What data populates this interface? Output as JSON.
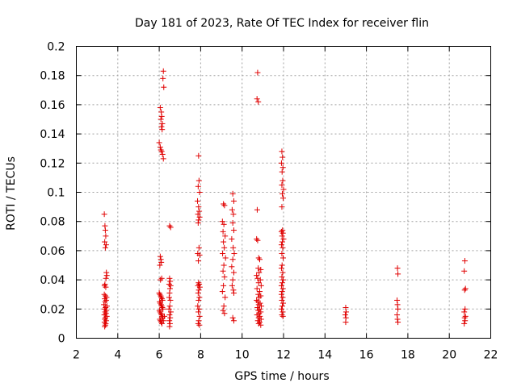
{
  "chart_data": {
    "type": "scatter",
    "title": "Day 181 of 2023, Rate Of TEC Index for receiver flin",
    "xlabel": "GPS time / hours",
    "ylabel": "ROTI / TECUs",
    "xlim": [
      2,
      22
    ],
    "ylim": [
      0,
      0.2
    ],
    "x_ticks": [
      2,
      4,
      6,
      8,
      10,
      12,
      14,
      16,
      18,
      20,
      22
    ],
    "y_ticks": [
      0,
      0.02,
      0.04,
      0.06,
      0.08,
      0.1,
      0.12,
      0.14,
      0.16,
      0.18,
      0.2
    ],
    "x_tick_labels": [
      "2",
      "4",
      "6",
      "8",
      "10",
      "12",
      "14",
      "16",
      "18",
      "20",
      "22"
    ],
    "y_tick_labels": [
      "0",
      "0.02",
      "0.04",
      "0.06",
      "0.08",
      "0.1",
      "0.12",
      "0.14",
      "0.16",
      "0.18",
      "0.2"
    ],
    "grid": true,
    "marker": "+",
    "color": "#e00000",
    "series": [
      {
        "points": [
          [
            3.35,
            0.085
          ],
          [
            3.38,
            0.077
          ],
          [
            3.4,
            0.074
          ],
          [
            3.42,
            0.07
          ],
          [
            3.37,
            0.066
          ],
          [
            3.44,
            0.064
          ],
          [
            3.4,
            0.062
          ],
          [
            3.45,
            0.045
          ],
          [
            3.47,
            0.043
          ],
          [
            3.43,
            0.041
          ],
          [
            3.38,
            0.037
          ],
          [
            3.36,
            0.036
          ],
          [
            3.42,
            0.035
          ],
          [
            3.35,
            0.03
          ],
          [
            3.4,
            0.029
          ],
          [
            3.46,
            0.028
          ],
          [
            3.37,
            0.027
          ],
          [
            3.44,
            0.026
          ],
          [
            3.39,
            0.025
          ],
          [
            3.33,
            0.023
          ],
          [
            3.48,
            0.022
          ],
          [
            3.41,
            0.021
          ],
          [
            3.36,
            0.02
          ],
          [
            3.45,
            0.019
          ],
          [
            3.39,
            0.018
          ],
          [
            3.43,
            0.017
          ],
          [
            3.35,
            0.016
          ],
          [
            3.47,
            0.015
          ],
          [
            3.4,
            0.014
          ],
          [
            3.38,
            0.013
          ],
          [
            3.44,
            0.012
          ],
          [
            3.36,
            0.011
          ],
          [
            3.42,
            0.01
          ],
          [
            3.4,
            0.009
          ],
          [
            3.37,
            0.008
          ],
          [
            6.05,
            0.158
          ],
          [
            6.1,
            0.155
          ],
          [
            6.12,
            0.152
          ],
          [
            6.08,
            0.15
          ],
          [
            6.15,
            0.147
          ],
          [
            6.11,
            0.145
          ],
          [
            6.14,
            0.143
          ],
          [
            6.2,
            0.183
          ],
          [
            6.18,
            0.178
          ],
          [
            6.22,
            0.172
          ],
          [
            6.0,
            0.134
          ],
          [
            6.05,
            0.131
          ],
          [
            6.08,
            0.129
          ],
          [
            6.12,
            0.128
          ],
          [
            6.16,
            0.126
          ],
          [
            6.2,
            0.123
          ],
          [
            6.5,
            0.077
          ],
          [
            6.55,
            0.076
          ],
          [
            6.05,
            0.056
          ],
          [
            6.08,
            0.054
          ],
          [
            6.1,
            0.052
          ],
          [
            6.03,
            0.05
          ],
          [
            6.12,
            0.041
          ],
          [
            6.06,
            0.04
          ],
          [
            6.0,
            0.031
          ],
          [
            6.03,
            0.03
          ],
          [
            6.07,
            0.029
          ],
          [
            6.1,
            0.028
          ],
          [
            6.13,
            0.027
          ],
          [
            6.16,
            0.026
          ],
          [
            6.02,
            0.025
          ],
          [
            6.05,
            0.024
          ],
          [
            6.09,
            0.023
          ],
          [
            6.12,
            0.022
          ],
          [
            6.15,
            0.021
          ],
          [
            6.18,
            0.02
          ],
          [
            6.01,
            0.019
          ],
          [
            6.04,
            0.018
          ],
          [
            6.08,
            0.017
          ],
          [
            6.11,
            0.016
          ],
          [
            6.14,
            0.015
          ],
          [
            6.17,
            0.014
          ],
          [
            6.03,
            0.013
          ],
          [
            6.06,
            0.012
          ],
          [
            6.1,
            0.011
          ],
          [
            6.13,
            0.01
          ],
          [
            6.2,
            0.012
          ],
          [
            6.25,
            0.015
          ],
          [
            6.5,
            0.041
          ],
          [
            6.53,
            0.039
          ],
          [
            6.48,
            0.037
          ],
          [
            6.55,
            0.036
          ],
          [
            6.52,
            0.034
          ],
          [
            6.5,
            0.031
          ],
          [
            6.48,
            0.028
          ],
          [
            6.54,
            0.026
          ],
          [
            6.51,
            0.022
          ],
          [
            6.47,
            0.02
          ],
          [
            6.56,
            0.018
          ],
          [
            6.5,
            0.016
          ],
          [
            6.53,
            0.014
          ],
          [
            6.49,
            0.012
          ],
          [
            6.52,
            0.01
          ],
          [
            6.5,
            0.008
          ],
          [
            7.9,
            0.125
          ],
          [
            7.92,
            0.108
          ],
          [
            7.88,
            0.104
          ],
          [
            7.95,
            0.1
          ],
          [
            7.85,
            0.094
          ],
          [
            7.9,
            0.09
          ],
          [
            7.93,
            0.087
          ],
          [
            7.87,
            0.085
          ],
          [
            7.95,
            0.083
          ],
          [
            7.9,
            0.081
          ],
          [
            7.88,
            0.079
          ],
          [
            7.92,
            0.062
          ],
          [
            7.86,
            0.058
          ],
          [
            7.95,
            0.057
          ],
          [
            7.89,
            0.053
          ],
          [
            7.9,
            0.038
          ],
          [
            7.93,
            0.037
          ],
          [
            7.87,
            0.036
          ],
          [
            7.96,
            0.035
          ],
          [
            7.91,
            0.033
          ],
          [
            7.88,
            0.031
          ],
          [
            7.94,
            0.028
          ],
          [
            7.9,
            0.026
          ],
          [
            7.86,
            0.022
          ],
          [
            7.92,
            0.02
          ],
          [
            7.89,
            0.018
          ],
          [
            7.95,
            0.015
          ],
          [
            7.91,
            0.012
          ],
          [
            7.88,
            0.01
          ],
          [
            7.94,
            0.009
          ],
          [
            9.1,
            0.092
          ],
          [
            9.15,
            0.091
          ],
          [
            9.05,
            0.08
          ],
          [
            9.12,
            0.078
          ],
          [
            9.08,
            0.073
          ],
          [
            9.18,
            0.07
          ],
          [
            9.1,
            0.066
          ],
          [
            9.14,
            0.062
          ],
          [
            9.06,
            0.058
          ],
          [
            9.2,
            0.055
          ],
          [
            9.12,
            0.05
          ],
          [
            9.08,
            0.046
          ],
          [
            9.15,
            0.042
          ],
          [
            9.1,
            0.036
          ],
          [
            9.05,
            0.032
          ],
          [
            9.18,
            0.028
          ],
          [
            9.12,
            0.022
          ],
          [
            9.08,
            0.019
          ],
          [
            9.15,
            0.017
          ],
          [
            9.55,
            0.099
          ],
          [
            9.6,
            0.094
          ],
          [
            9.52,
            0.088
          ],
          [
            9.58,
            0.085
          ],
          [
            9.55,
            0.079
          ],
          [
            9.6,
            0.074
          ],
          [
            9.5,
            0.068
          ],
          [
            9.57,
            0.062
          ],
          [
            9.62,
            0.058
          ],
          [
            9.55,
            0.054
          ],
          [
            9.5,
            0.049
          ],
          [
            9.6,
            0.045
          ],
          [
            9.55,
            0.04
          ],
          [
            9.52,
            0.036
          ],
          [
            9.58,
            0.033
          ],
          [
            9.6,
            0.031
          ],
          [
            9.55,
            0.014
          ],
          [
            9.6,
            0.012
          ],
          [
            10.75,
            0.182
          ],
          [
            10.72,
            0.164
          ],
          [
            10.78,
            0.162
          ],
          [
            10.73,
            0.088
          ],
          [
            10.7,
            0.068
          ],
          [
            10.75,
            0.067
          ],
          [
            10.8,
            0.055
          ],
          [
            10.85,
            0.054
          ],
          [
            10.78,
            0.048
          ],
          [
            10.9,
            0.047
          ],
          [
            10.82,
            0.045
          ],
          [
            10.7,
            0.043
          ],
          [
            10.75,
            0.041
          ],
          [
            10.88,
            0.04
          ],
          [
            10.8,
            0.038
          ],
          [
            10.92,
            0.036
          ],
          [
            10.72,
            0.034
          ],
          [
            10.85,
            0.032
          ],
          [
            10.78,
            0.03
          ],
          [
            10.9,
            0.029
          ],
          [
            10.82,
            0.028
          ],
          [
            10.7,
            0.026
          ],
          [
            10.76,
            0.025
          ],
          [
            10.87,
            0.024
          ],
          [
            10.8,
            0.023
          ],
          [
            10.93,
            0.022
          ],
          [
            10.74,
            0.021
          ],
          [
            10.84,
            0.02
          ],
          [
            10.78,
            0.019
          ],
          [
            10.9,
            0.018
          ],
          [
            10.82,
            0.017
          ],
          [
            10.72,
            0.016
          ],
          [
            10.86,
            0.015
          ],
          [
            10.8,
            0.014
          ],
          [
            10.92,
            0.013
          ],
          [
            10.76,
            0.012
          ],
          [
            10.85,
            0.011
          ],
          [
            10.8,
            0.01
          ],
          [
            10.9,
            0.009
          ],
          [
            11.92,
            0.128
          ],
          [
            11.95,
            0.124
          ],
          [
            11.9,
            0.12
          ],
          [
            11.97,
            0.117
          ],
          [
            11.93,
            0.114
          ],
          [
            11.96,
            0.108
          ],
          [
            11.92,
            0.105
          ],
          [
            12.0,
            0.102
          ],
          [
            11.94,
            0.099
          ],
          [
            11.98,
            0.096
          ],
          [
            11.92,
            0.09
          ],
          [
            11.95,
            0.074
          ],
          [
            11.9,
            0.073
          ],
          [
            11.97,
            0.072
          ],
          [
            11.93,
            0.07
          ],
          [
            12.0,
            0.068
          ],
          [
            11.94,
            0.066
          ],
          [
            11.9,
            0.064
          ],
          [
            11.96,
            0.062
          ],
          [
            11.92,
            0.058
          ],
          [
            11.98,
            0.055
          ],
          [
            11.93,
            0.05
          ],
          [
            11.9,
            0.048
          ],
          [
            11.96,
            0.045
          ],
          [
            11.92,
            0.042
          ],
          [
            11.98,
            0.04
          ],
          [
            11.94,
            0.038
          ],
          [
            11.9,
            0.036
          ],
          [
            11.97,
            0.034
          ],
          [
            11.93,
            0.032
          ],
          [
            11.9,
            0.03
          ],
          [
            11.96,
            0.028
          ],
          [
            11.92,
            0.026
          ],
          [
            11.98,
            0.024
          ],
          [
            11.94,
            0.022
          ],
          [
            11.9,
            0.02
          ],
          [
            11.96,
            0.018
          ],
          [
            11.92,
            0.016
          ],
          [
            11.97,
            0.015
          ],
          [
            15.0,
            0.021
          ],
          [
            15.02,
            0.018
          ],
          [
            14.98,
            0.016
          ],
          [
            15.01,
            0.014
          ],
          [
            15.0,
            0.011
          ],
          [
            17.5,
            0.048
          ],
          [
            17.52,
            0.044
          ],
          [
            17.48,
            0.026
          ],
          [
            17.5,
            0.023
          ],
          [
            17.52,
            0.02
          ],
          [
            17.48,
            0.016
          ],
          [
            17.5,
            0.013
          ],
          [
            17.52,
            0.011
          ],
          [
            20.75,
            0.053
          ],
          [
            20.72,
            0.046
          ],
          [
            20.78,
            0.034
          ],
          [
            20.74,
            0.033
          ],
          [
            20.76,
            0.02
          ],
          [
            20.72,
            0.018
          ],
          [
            20.78,
            0.015
          ],
          [
            20.74,
            0.014
          ],
          [
            20.76,
            0.012
          ],
          [
            20.72,
            0.01
          ]
        ]
      }
    ]
  }
}
